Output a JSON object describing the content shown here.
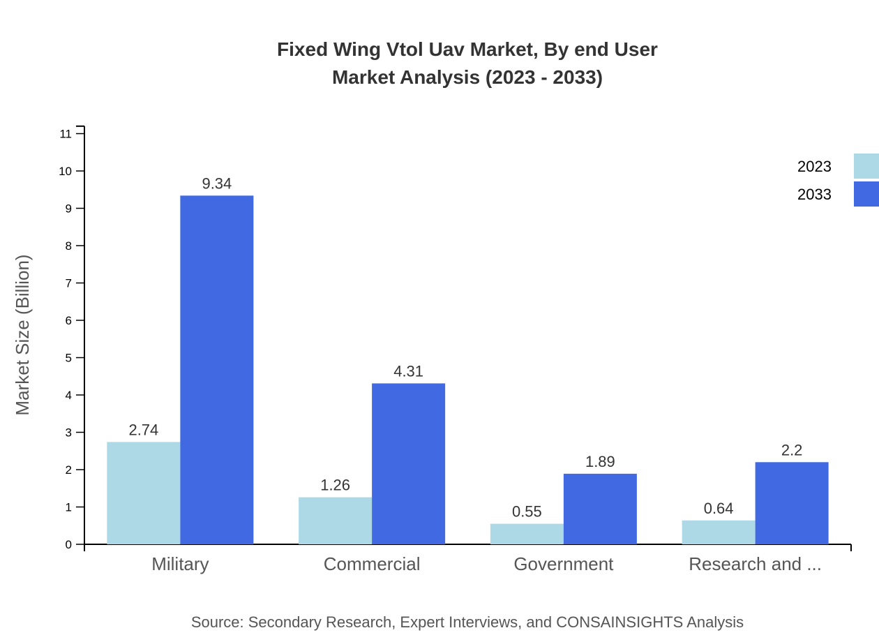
{
  "chart_data": {
    "type": "bar",
    "title": "Fixed Wing Vtol Uav Market, By end User",
    "subtitle": "Market Analysis (2023 - 2033)",
    "xlabel": "",
    "ylabel": "Market Size (Billion)",
    "ylim": [
      0,
      11.2
    ],
    "yticks": [
      0,
      1,
      2,
      3,
      4,
      5,
      6,
      7,
      8,
      9,
      10,
      11
    ],
    "grid": false,
    "legend_position": "top-right",
    "categories": [
      "Military",
      "Commercial",
      "Government",
      "Research and ..."
    ],
    "series": [
      {
        "name": "2023",
        "color": "#add8e6",
        "values": [
          2.74,
          1.26,
          0.55,
          0.64
        ]
      },
      {
        "name": "2033",
        "color": "#4169e1",
        "values": [
          9.34,
          4.31,
          1.89,
          2.2
        ]
      }
    ],
    "source": "Source: Secondary Research, Expert Interviews, and CONSAINSIGHTS Analysis"
  }
}
